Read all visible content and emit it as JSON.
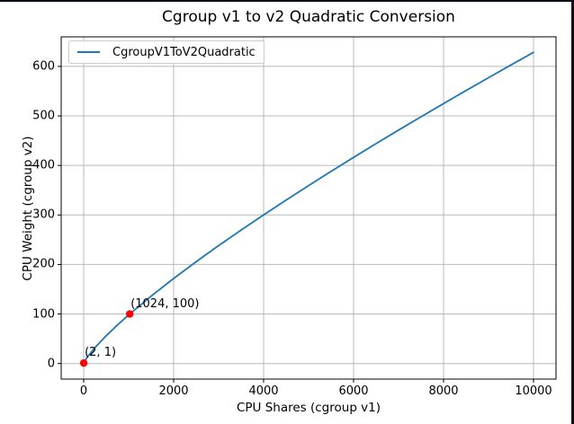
{
  "window": {
    "edge_color": "#0a0e17"
  },
  "chart_data": {
    "type": "line",
    "title": "Cgroup v1 to v2 Quadratic Conversion",
    "xlabel": "CPU Shares (cgroup v1)",
    "ylabel": "CPU Weight (cgroup v2)",
    "xlim": [
      -500,
      10500
    ],
    "ylim": [
      -31.4,
      659.7
    ],
    "xticks": [
      0,
      2000,
      4000,
      6000,
      8000,
      10000
    ],
    "yticks": [
      0,
      100,
      200,
      300,
      400,
      500,
      600
    ],
    "grid": true,
    "grid_color": "#b8b8b8",
    "spine_color": "#000000",
    "legend": {
      "position": "upper-left",
      "entries": [
        {
          "label": "CgroupV1ToV2Quadratic",
          "color": "#1f77b4"
        }
      ]
    },
    "series": [
      {
        "name": "CgroupV1ToV2Quadratic",
        "color": "#1f77b4",
        "points": [
          [
            2,
            0.7
          ],
          [
            25,
            5.0
          ],
          [
            50,
            8.8
          ],
          [
            100,
            15.3
          ],
          [
            250,
            32.1
          ],
          [
            500,
            56.1
          ],
          [
            750,
            77.8
          ],
          [
            1024,
            100.0
          ],
          [
            1500,
            136.1
          ],
          [
            2000,
            171.7
          ],
          [
            2500,
            205.5
          ],
          [
            3000,
            238.1
          ],
          [
            3500,
            269.5
          ],
          [
            4000,
            300.2
          ],
          [
            4500,
            330.1
          ],
          [
            5000,
            359.4
          ],
          [
            5500,
            388.0
          ],
          [
            6000,
            416.3
          ],
          [
            6500,
            444.0
          ],
          [
            7000,
            471.4
          ],
          [
            7500,
            498.3
          ],
          [
            8000,
            524.9
          ],
          [
            8500,
            551.2
          ],
          [
            9000,
            577.2
          ],
          [
            9500,
            602.9
          ],
          [
            10000,
            628.3
          ]
        ]
      }
    ],
    "annotated_points": [
      {
        "x": 2,
        "y": 1,
        "label": "(2, 1)",
        "color": "#ff0000"
      },
      {
        "x": 1024,
        "y": 100,
        "label": "(1024, 100)",
        "color": "#ff0000"
      }
    ]
  }
}
